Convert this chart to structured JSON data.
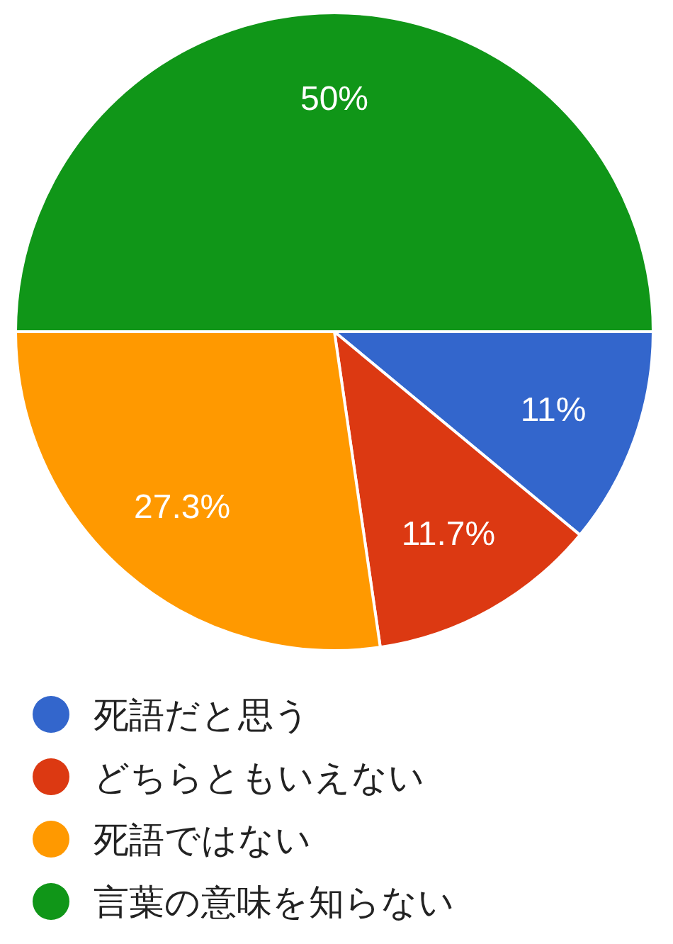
{
  "chart_data": {
    "type": "pie",
    "categories": [
      "死語だと思う",
      "どちらともいえない",
      "死語ではない",
      "言葉の意味を知らない"
    ],
    "values": [
      11,
      11.7,
      27.3,
      50
    ],
    "colors": [
      "#3366cc",
      "#dc3912",
      "#ff9900",
      "#109618"
    ],
    "value_labels": [
      "11%",
      "11.7%",
      "27.3%",
      "50%"
    ],
    "legend": "bottom"
  }
}
